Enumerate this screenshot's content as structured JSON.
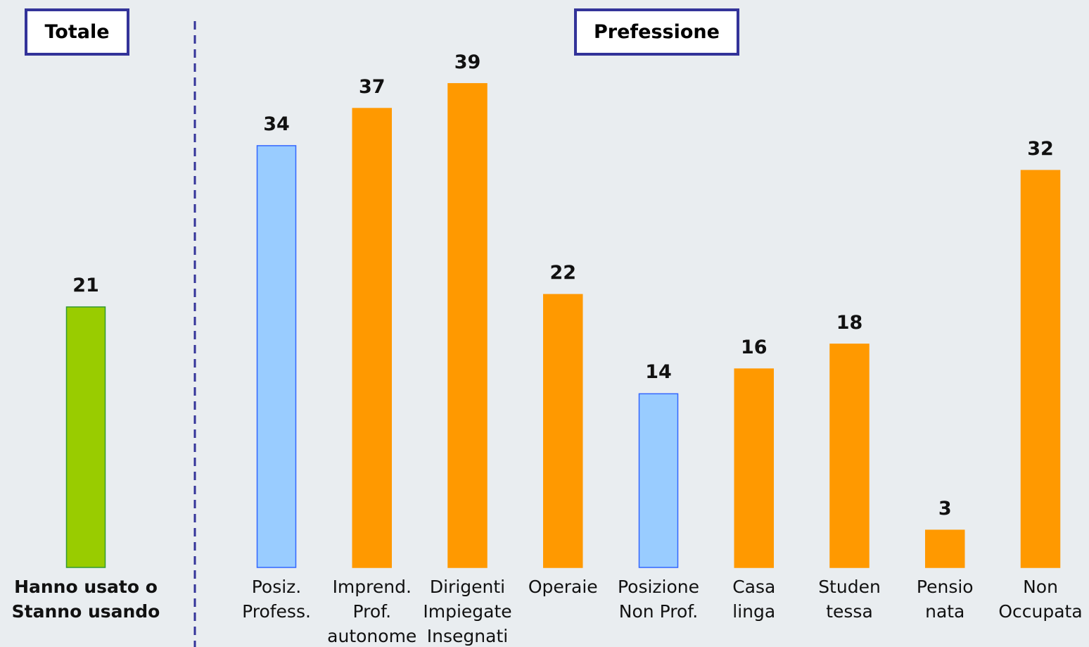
{
  "chart_data": [
    {
      "type": "bar",
      "title": "Totale",
      "categories": [
        "Hanno usato o\nStanno usando"
      ],
      "values": [
        21
      ],
      "colors": [
        "#99cc00"
      ],
      "border_colors": [
        "#339933"
      ],
      "category_bold": true
    },
    {
      "type": "bar",
      "title": "Prefessione",
      "categories": [
        "Posiz.\nProfess.",
        "Imprend.\nProf.\nautonome",
        "Dirigenti\nImpiegate\nInsegnati",
        "Operaie",
        "Posizione\nNon Prof.",
        "Casa\nlinga",
        "Studen\ntessa",
        "Pensio\nnata",
        "Non\nOccupata"
      ],
      "values": [
        34,
        37,
        39,
        22,
        14,
        16,
        18,
        3,
        32
      ],
      "colors": [
        "#99ccff",
        "#ff9900",
        "#ff9900",
        "#ff9900",
        "#99ccff",
        "#ff9900",
        "#ff9900",
        "#ff9900",
        "#ff9900"
      ],
      "border_colors": [
        "#3366ff",
        "#ff9900",
        "#ff9900",
        "#ff9900",
        "#3366ff",
        "#ff9900",
        "#ff9900",
        "#ff9900",
        "#ff9900"
      ],
      "category_bold": false
    }
  ]
}
